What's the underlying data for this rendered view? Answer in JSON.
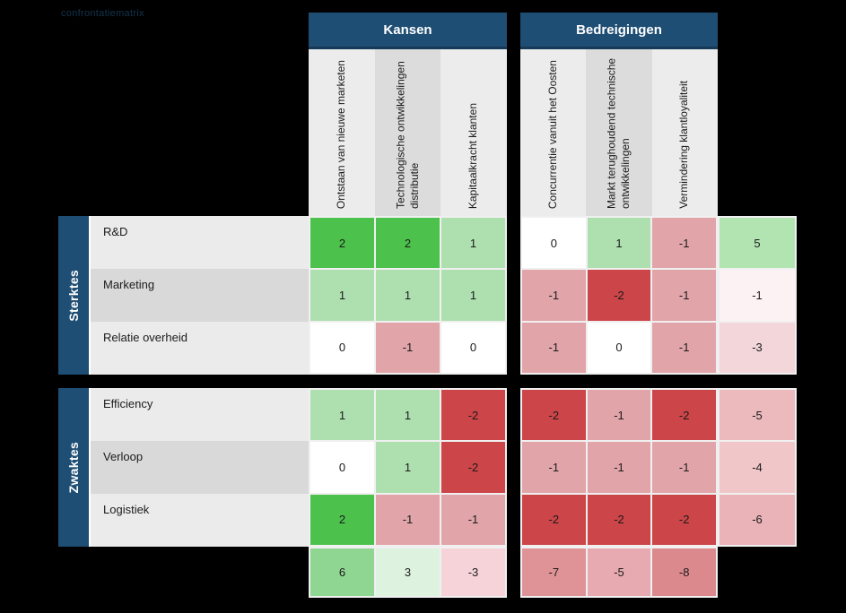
{
  "watermark": "confrontatiematrix",
  "colors": {
    "background": "#000000",
    "header_bg": "#1f4e74",
    "header_border": "#163a57",
    "col_light": "#ececec",
    "col_dark": "#dcdcdc",
    "row_light": "#ebebeb",
    "row_dark": "#d9d9d9",
    "grid_line": "#f0f0f0",
    "text": "#1b1b1b"
  },
  "chart_data": {
    "type": "heatmap",
    "title": "",
    "column_groups": [
      "Kansen",
      "Bedreigingen"
    ],
    "columns": [
      "Ontstaan van nieuwe marketen",
      "Technologische ontwikkelingen distributie",
      "Kapitaalkracht klanten",
      "Concurrentie vanuit het Oosten",
      "Markt terughoudend technische ontwikkelingen",
      "Vermindering klantloyaliteit"
    ],
    "row_groups": [
      "Sterktes",
      "Zwaktes"
    ],
    "rows": [
      "R&D",
      "Marketing",
      "Relatie overheid",
      "Efficiency",
      "Verloop",
      "Logistiek"
    ],
    "values": [
      [
        2,
        2,
        1,
        0,
        1,
        -1
      ],
      [
        1,
        1,
        1,
        -1,
        -2,
        -1
      ],
      [
        0,
        -1,
        0,
        -1,
        0,
        -1
      ],
      [
        1,
        1,
        -2,
        -2,
        -1,
        -2
      ],
      [
        0,
        1,
        -2,
        -1,
        -1,
        -1
      ],
      [
        2,
        -1,
        -1,
        -2,
        -2,
        -2
      ]
    ],
    "row_totals": [
      5,
      -1,
      -3,
      -5,
      -4,
      -6
    ],
    "column_totals": [
      6,
      3,
      -3,
      -7,
      -5,
      -8
    ],
    "value_colors": {
      "2": "#4cc24c",
      "1": "#aedfae",
      "0": "#ffffff",
      "-1": "#e1a4a9",
      "-2": "#cc4548"
    },
    "row_total_colors": [
      "#b2e4b2",
      "#fdf2f3",
      "#f3d6d9",
      "#ecb9bd",
      "#f0c6c9",
      "#e9b3b7"
    ],
    "column_total_colors": [
      "#8fd692",
      "#def3df",
      "#f6d3d9",
      "#df9397",
      "#e7aab0",
      "#dc898e"
    ]
  }
}
